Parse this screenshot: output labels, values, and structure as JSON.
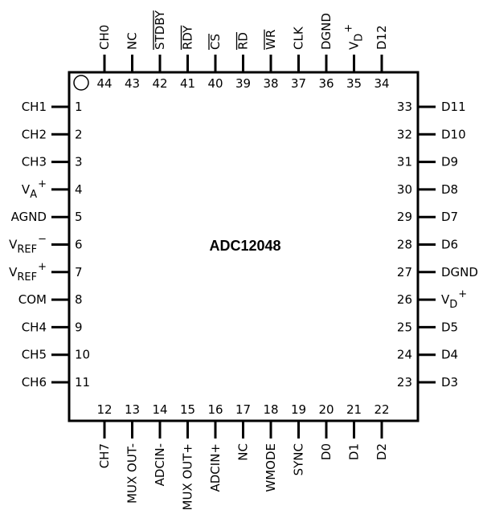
{
  "chip": {
    "title": "ADC12048"
  },
  "pins": {
    "left": [
      {
        "num": "1",
        "label": "CH1"
      },
      {
        "num": "2",
        "label": "CH2"
      },
      {
        "num": "3",
        "label": "CH3"
      },
      {
        "num": "4",
        "label": "V",
        "sub": "A",
        "sup": "+"
      },
      {
        "num": "5",
        "label": "AGND"
      },
      {
        "num": "6",
        "label": "V",
        "sub": "REF",
        "sup": "−"
      },
      {
        "num": "7",
        "label": "V",
        "sub": "REF",
        "sup": "+"
      },
      {
        "num": "8",
        "label": "COM"
      },
      {
        "num": "9",
        "label": "CH4"
      },
      {
        "num": "10",
        "label": "CH5"
      },
      {
        "num": "11",
        "label": "CH6"
      }
    ],
    "right": [
      {
        "num": "33",
        "label": "D11"
      },
      {
        "num": "32",
        "label": "D10"
      },
      {
        "num": "31",
        "label": "D9"
      },
      {
        "num": "30",
        "label": "D8"
      },
      {
        "num": "29",
        "label": "D7"
      },
      {
        "num": "28",
        "label": "D6"
      },
      {
        "num": "27",
        "label": "DGND"
      },
      {
        "num": "26",
        "label": "V",
        "sub": "D",
        "sup": "+"
      },
      {
        "num": "25",
        "label": "D5"
      },
      {
        "num": "24",
        "label": "D4"
      },
      {
        "num": "23",
        "label": "D3"
      }
    ],
    "top": [
      {
        "num": "44",
        "label": "CH0"
      },
      {
        "num": "43",
        "label": "NC"
      },
      {
        "num": "42",
        "label": "STDBY",
        "overline": true
      },
      {
        "num": "41",
        "label": "RDY",
        "overline": true
      },
      {
        "num": "40",
        "label": "CS",
        "overline": true
      },
      {
        "num": "39",
        "label": "RD",
        "overline": true
      },
      {
        "num": "38",
        "label": "WR",
        "overline": true
      },
      {
        "num": "37",
        "label": "CLK"
      },
      {
        "num": "36",
        "label": "DGND"
      },
      {
        "num": "35",
        "label": "V",
        "sub": "D",
        "sup": "+"
      },
      {
        "num": "34",
        "label": "D12"
      }
    ],
    "bottom": [
      {
        "num": "12",
        "label": "CH7"
      },
      {
        "num": "13",
        "label": "MUX OUT-"
      },
      {
        "num": "14",
        "label": "ADCIN-"
      },
      {
        "num": "15",
        "label": "MUX OUT+"
      },
      {
        "num": "16",
        "label": "ADCIN+"
      },
      {
        "num": "17",
        "label": "NC"
      },
      {
        "num": "18",
        "label": "WMODE"
      },
      {
        "num": "19",
        "label": "SYNC"
      },
      {
        "num": "20",
        "label": "D0"
      },
      {
        "num": "21",
        "label": "D1"
      },
      {
        "num": "22",
        "label": "D2"
      }
    ]
  }
}
